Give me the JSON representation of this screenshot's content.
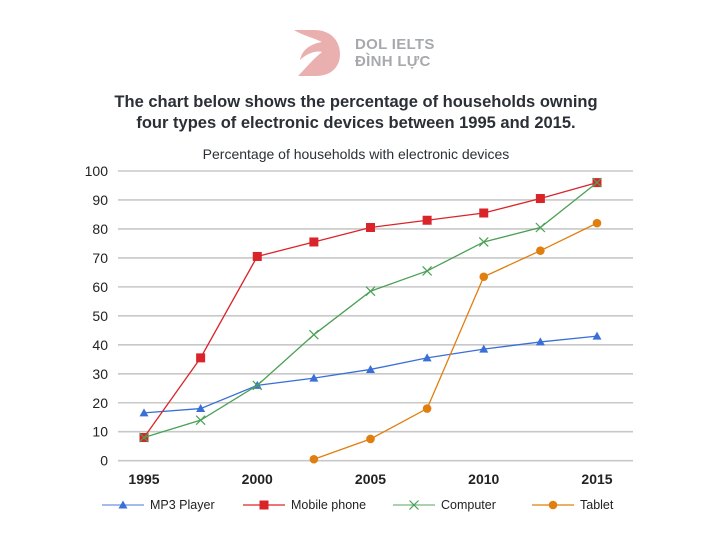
{
  "branding": {
    "logo_line1": "DOL IELTS",
    "logo_line2": "ĐÌNH LỰC",
    "logo_color": "#eab0b0"
  },
  "question": {
    "line1": "The chart below shows the percentage of households owning",
    "line2": "four types of electronic devices between 1995 and 2015."
  },
  "chart_data": {
    "type": "line",
    "title": "Percentage of households with electronic devices",
    "xlabel": "",
    "ylabel": "",
    "x": [
      1995,
      1997.5,
      2000,
      2002.5,
      2005,
      2007.5,
      2010,
      2012.5,
      2015
    ],
    "x_ticks": [
      "1995",
      "2000",
      "2005",
      "2010",
      "2015"
    ],
    "x_tick_values": [
      1995,
      2000,
      2005,
      2010,
      2015
    ],
    "xlim": [
      1994,
      2016.5
    ],
    "ylim": [
      0,
      100
    ],
    "y_ticks": [
      "0",
      "10",
      "20",
      "30",
      "40",
      "50",
      "60",
      "70",
      "80",
      "90",
      "100"
    ],
    "y_tick_values": [
      0,
      10,
      20,
      30,
      40,
      50,
      60,
      70,
      80,
      90,
      100
    ],
    "grid": true,
    "legend_position": "bottom",
    "series": [
      {
        "name": "MP3 Player",
        "color": "#3a6fd8",
        "marker": "triangle",
        "values": [
          16.5,
          18,
          26,
          28.5,
          31.5,
          35.5,
          38.5,
          41,
          43
        ]
      },
      {
        "name": "Mobile phone",
        "color": "#d9252a",
        "marker": "square",
        "values": [
          8,
          35.5,
          70.5,
          75.5,
          80.5,
          83,
          85.5,
          90.5,
          96
        ]
      },
      {
        "name": "Computer",
        "color": "#4aa055",
        "marker": "x",
        "values": [
          8,
          14,
          26,
          43.5,
          58.5,
          65.5,
          75.5,
          80.5,
          96
        ]
      },
      {
        "name": "Tablet",
        "color": "#e07f0f",
        "marker": "circle",
        "values": [
          null,
          null,
          null,
          0.5,
          7.5,
          18,
          63.5,
          72.5,
          82
        ]
      }
    ]
  }
}
